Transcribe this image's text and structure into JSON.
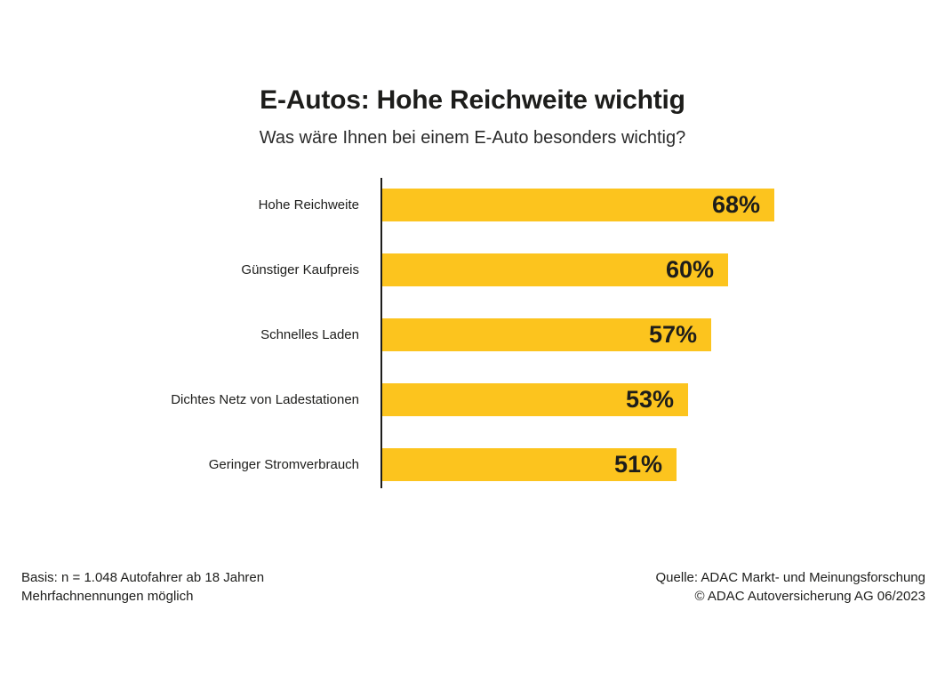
{
  "page": {
    "background": "#FFFFFF"
  },
  "header": {
    "title": "E-Autos: Hohe Reichweite wichtig",
    "subtitle": "Was wäre Ihnen bei einem E-Auto besonders wichtig?"
  },
  "chart_data": {
    "type": "bar",
    "orientation": "horizontal",
    "title": "E-Autos: Hohe Reichweite wichtig",
    "subtitle": "Was wäre Ihnen bei einem E-Auto besonders wichtig?",
    "categories": [
      "Hohe Reichweite",
      "Günstiger Kaufpreis",
      "Schnelles Laden",
      "Dichtes Netz von Ladestationen",
      "Geringer Stromverbrauch"
    ],
    "values": [
      68,
      60,
      57,
      53,
      51
    ],
    "value_labels": [
      "68%",
      "60%",
      "57%",
      "53%",
      "51%"
    ],
    "unit": "%",
    "xlim": [
      0,
      100
    ],
    "grid": false,
    "legend": "none",
    "bar_color": "#FCC41E",
    "text_color": "#1D1D1B",
    "axis_color": "#1D1D1B"
  },
  "footer": {
    "left_line1": "Basis: n = 1.048 Autofahrer ab 18 Jahren",
    "left_line2": "Mehrfachnennungen möglich",
    "right_line1": "Quelle: ADAC Markt- und Meinungsforschung",
    "right_line2": "© ADAC Autoversicherung AG 06/2023"
  }
}
